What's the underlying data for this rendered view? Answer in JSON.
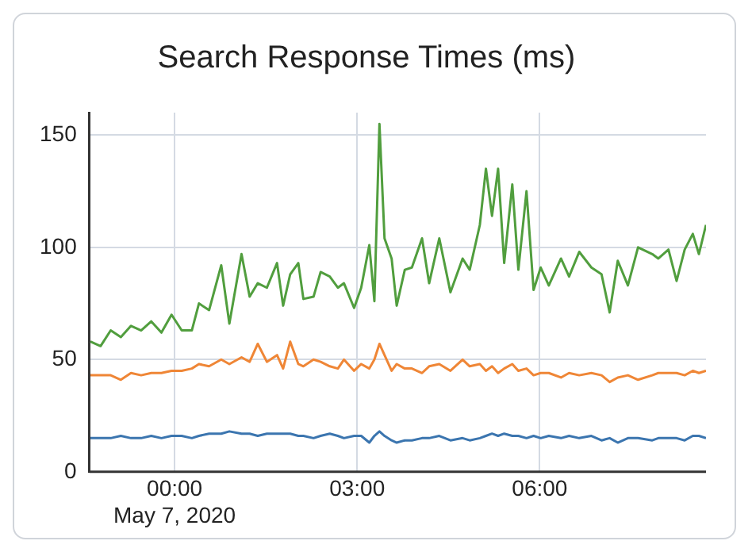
{
  "chart_data": {
    "type": "line",
    "title": "Search Response Times (ms)",
    "x": [
      "2020-05-06T22:37",
      "2020-05-06T22:47",
      "2020-05-06T22:57",
      "2020-05-06T23:07",
      "2020-05-06T23:17",
      "2020-05-06T23:27",
      "2020-05-06T23:37",
      "2020-05-06T23:47",
      "2020-05-06T23:57",
      "2020-05-07T00:07",
      "2020-05-07T00:17",
      "2020-05-07T00:24",
      "2020-05-07T00:34",
      "2020-05-07T00:46",
      "2020-05-07T00:54",
      "2020-05-07T01:06",
      "2020-05-07T01:14",
      "2020-05-07T01:22",
      "2020-05-07T01:31",
      "2020-05-07T01:41",
      "2020-05-07T01:47",
      "2020-05-07T01:54",
      "2020-05-07T02:02",
      "2020-05-07T02:07",
      "2020-05-07T02:17",
      "2020-05-07T02:24",
      "2020-05-07T02:33",
      "2020-05-07T02:41",
      "2020-05-07T02:47",
      "2020-05-07T02:57",
      "2020-05-07T03:04",
      "2020-05-07T03:12",
      "2020-05-07T03:17",
      "2020-05-07T03:22",
      "2020-05-07T03:27",
      "2020-05-07T03:34",
      "2020-05-07T03:39",
      "2020-05-07T03:47",
      "2020-05-07T03:54",
      "2020-05-07T04:04",
      "2020-05-07T04:11",
      "2020-05-07T04:21",
      "2020-05-07T04:32",
      "2020-05-07T04:44",
      "2020-05-07T04:51",
      "2020-05-07T05:01",
      "2020-05-07T05:07",
      "2020-05-07T05:13",
      "2020-05-07T05:19",
      "2020-05-07T05:25",
      "2020-05-07T05:33",
      "2020-05-07T05:39",
      "2020-05-07T05:47",
      "2020-05-07T05:54",
      "2020-05-07T06:01",
      "2020-05-07T06:09",
      "2020-05-07T06:21",
      "2020-05-07T06:29",
      "2020-05-07T06:39",
      "2020-05-07T06:51",
      "2020-05-07T07:01",
      "2020-05-07T07:09",
      "2020-05-07T07:17",
      "2020-05-07T07:27",
      "2020-05-07T07:37",
      "2020-05-07T07:51",
      "2020-05-07T07:57",
      "2020-05-07T08:07",
      "2020-05-07T08:15",
      "2020-05-07T08:23",
      "2020-05-07T08:31",
      "2020-05-07T08:37",
      "2020-05-07T08:44"
    ],
    "series": [
      {
        "color": "#3b75af",
        "values": [
          15,
          15,
          15,
          16,
          15,
          15,
          16,
          15,
          16,
          16,
          15,
          16,
          17,
          17,
          18,
          17,
          17,
          16,
          17,
          17,
          17,
          17,
          16,
          16,
          15,
          16,
          17,
          16,
          15,
          16,
          16,
          13,
          16,
          18,
          16,
          14,
          13,
          14,
          14,
          15,
          15,
          16,
          14,
          15,
          14,
          15,
          16,
          17,
          16,
          17,
          16,
          16,
          15,
          16,
          15,
          16,
          15,
          16,
          15,
          16,
          14,
          15,
          13,
          15,
          15,
          14,
          15,
          15,
          15,
          14,
          16,
          16,
          15
        ]
      },
      {
        "color": "#ef8636",
        "values": [
          43,
          43,
          43,
          41,
          44,
          43,
          44,
          44,
          45,
          45,
          46,
          48,
          47,
          50,
          48,
          51,
          49,
          57,
          49,
          52,
          46,
          58,
          48,
          47,
          50,
          49,
          47,
          46,
          50,
          45,
          48,
          46,
          50,
          57,
          52,
          45,
          48,
          46,
          46,
          44,
          47,
          48,
          45,
          50,
          47,
          48,
          45,
          47,
          44,
          46,
          48,
          45,
          46,
          43,
          44,
          44,
          42,
          44,
          43,
          44,
          43,
          40,
          42,
          43,
          41,
          43,
          44,
          44,
          44,
          43,
          45,
          44,
          45
        ]
      },
      {
        "color": "#519e3e",
        "values": [
          58,
          56,
          63,
          60,
          65,
          63,
          67,
          62,
          70,
          63,
          63,
          75,
          72,
          92,
          66,
          97,
          78,
          84,
          82,
          93,
          74,
          88,
          93,
          77,
          78,
          89,
          87,
          82,
          84,
          73,
          82,
          101,
          76,
          155,
          104,
          95,
          74,
          90,
          91,
          104,
          84,
          104,
          80,
          95,
          90,
          110,
          135,
          114,
          135,
          93,
          128,
          90,
          125,
          81,
          91,
          83,
          95,
          87,
          98,
          91,
          88,
          71,
          94,
          83,
          100,
          97,
          95,
          99,
          85,
          99,
          106,
          97,
          110
        ]
      }
    ],
    "xlim": [
      "2020-05-06T22:36",
      "2020-05-07T08:44"
    ],
    "xticks": [
      {
        "value": "2020-05-07T00:00",
        "label": "00:00\nMay 7, 2020"
      },
      {
        "value": "2020-05-07T03:00",
        "label": "03:00"
      },
      {
        "value": "2020-05-07T06:00",
        "label": "06:00"
      }
    ],
    "ylim": [
      0,
      160
    ],
    "yticks": [
      0,
      50,
      100,
      150
    ],
    "grid": true,
    "legend": false,
    "marker": "none",
    "line_style": "solid"
  }
}
